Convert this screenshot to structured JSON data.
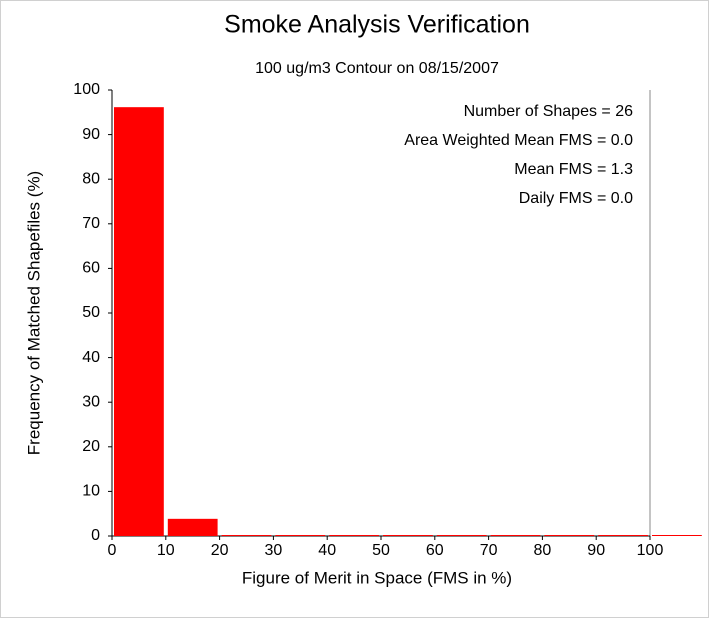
{
  "chart_data": {
    "type": "histogram",
    "title": "Smoke Analysis Verification",
    "subtitle": "100 ug/m3 Contour on 08/15/2007",
    "x_label": "Figure of Merit in Space (FMS in %)",
    "y_label": "Frequency of Matched Shapefiles (%)",
    "bins": [
      0,
      10,
      20,
      30,
      40,
      50,
      60,
      70,
      80,
      90,
      100,
      110
    ],
    "values": [
      96.15,
      3.85,
      0,
      0,
      0,
      0,
      0,
      0,
      0,
      0,
      0
    ],
    "color": "#ff0000",
    "xlim": [
      0,
      100
    ],
    "xticks": [
      0,
      10,
      20,
      30,
      40,
      50,
      60,
      70,
      80,
      90,
      100
    ],
    "ylim": [
      0,
      100
    ],
    "yticks": [
      0,
      10,
      20,
      30,
      40,
      50,
      60,
      70,
      80,
      90,
      100
    ],
    "annotations": [
      "Number of Shapes = 26",
      "Area Weighted Mean FMS = 0.0",
      "Mean FMS = 1.3",
      "Daily FMS = 0.0"
    ]
  }
}
